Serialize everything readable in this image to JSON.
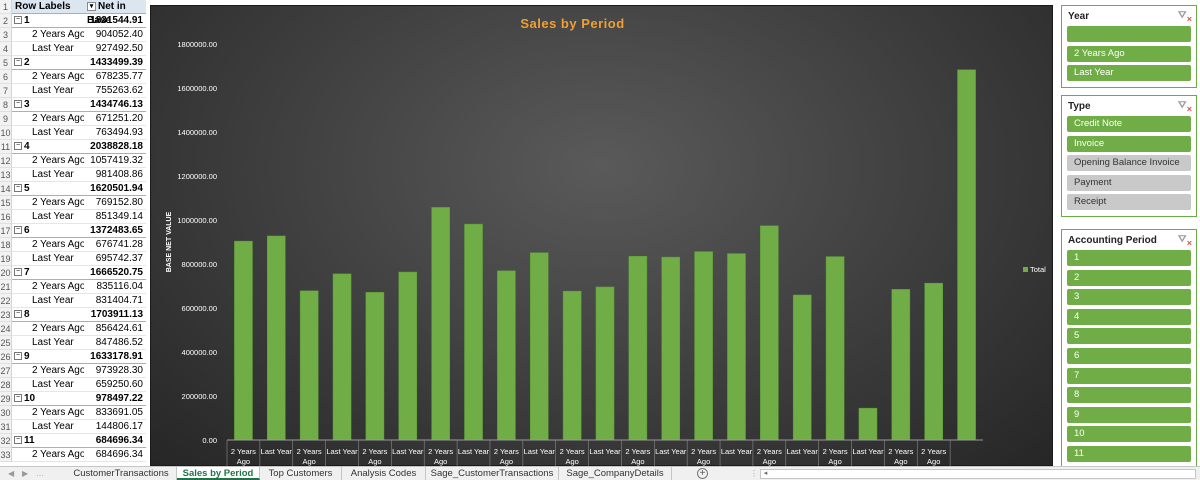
{
  "pivot": {
    "headers": {
      "row_labels": "Row Labels",
      "value_col": "Net in Base"
    },
    "rows": [
      {
        "n": "2",
        "label": "1",
        "value": "1831544.91",
        "kind": "group"
      },
      {
        "n": "3",
        "label": "2 Years Ago",
        "value": "904052.40",
        "kind": "child"
      },
      {
        "n": "4",
        "label": "Last Year",
        "value": "927492.50",
        "kind": "child"
      },
      {
        "n": "5",
        "label": "2",
        "value": "1433499.39",
        "kind": "group"
      },
      {
        "n": "6",
        "label": "2 Years Ago",
        "value": "678235.77",
        "kind": "child"
      },
      {
        "n": "7",
        "label": "Last Year",
        "value": "755263.62",
        "kind": "child"
      },
      {
        "n": "8",
        "label": "3",
        "value": "1434746.13",
        "kind": "group"
      },
      {
        "n": "9",
        "label": "2 Years Ago",
        "value": "671251.20",
        "kind": "child"
      },
      {
        "n": "10",
        "label": "Last Year",
        "value": "763494.93",
        "kind": "child"
      },
      {
        "n": "11",
        "label": "4",
        "value": "2038828.18",
        "kind": "group"
      },
      {
        "n": "12",
        "label": "2 Years Ago",
        "value": "1057419.32",
        "kind": "child"
      },
      {
        "n": "13",
        "label": "Last Year",
        "value": "981408.86",
        "kind": "child"
      },
      {
        "n": "14",
        "label": "5",
        "value": "1620501.94",
        "kind": "group"
      },
      {
        "n": "15",
        "label": "2 Years Ago",
        "value": "769152.80",
        "kind": "child"
      },
      {
        "n": "16",
        "label": "Last Year",
        "value": "851349.14",
        "kind": "child"
      },
      {
        "n": "17",
        "label": "6",
        "value": "1372483.65",
        "kind": "group"
      },
      {
        "n": "18",
        "label": "2 Years Ago",
        "value": "676741.28",
        "kind": "child"
      },
      {
        "n": "19",
        "label": "Last Year",
        "value": "695742.37",
        "kind": "child"
      },
      {
        "n": "20",
        "label": "7",
        "value": "1666520.75",
        "kind": "group"
      },
      {
        "n": "21",
        "label": "2 Years Ago",
        "value": "835116.04",
        "kind": "child"
      },
      {
        "n": "22",
        "label": "Last Year",
        "value": "831404.71",
        "kind": "child"
      },
      {
        "n": "23",
        "label": "8",
        "value": "1703911.13",
        "kind": "group"
      },
      {
        "n": "24",
        "label": "2 Years Ago",
        "value": "856424.61",
        "kind": "child"
      },
      {
        "n": "25",
        "label": "Last Year",
        "value": "847486.52",
        "kind": "child"
      },
      {
        "n": "26",
        "label": "9",
        "value": "1633178.91",
        "kind": "group"
      },
      {
        "n": "27",
        "label": "2 Years Ago",
        "value": "973928.30",
        "kind": "child"
      },
      {
        "n": "28",
        "label": "Last Year",
        "value": "659250.60",
        "kind": "child"
      },
      {
        "n": "29",
        "label": "10",
        "value": "978497.22",
        "kind": "group"
      },
      {
        "n": "30",
        "label": "2 Years Ago",
        "value": "833691.05",
        "kind": "child"
      },
      {
        "n": "31",
        "label": "Last Year",
        "value": "144806.17",
        "kind": "child"
      },
      {
        "n": "32",
        "label": "11",
        "value": "684696.34",
        "kind": "group"
      },
      {
        "n": "33",
        "label": "2 Years Ago",
        "value": "684696.34",
        "kind": "child"
      }
    ]
  },
  "chart_data": {
    "type": "bar",
    "title": "Sales by Period",
    "ylabel": "BASE NET VALUE",
    "xlabel": "",
    "ylim": [
      0,
      1800000
    ],
    "yticks": [
      "0.00",
      "200000.00",
      "400000.00",
      "600000.00",
      "800000.00",
      "1000000.00",
      "1200000.00",
      "1400000.00",
      "1600000.00",
      "1800000.00"
    ],
    "legend_position": "right",
    "grid": false,
    "series": [
      {
        "name": "Total",
        "color": "#70ad47"
      }
    ],
    "categories": [
      "2 Years Ago",
      "Last Year",
      "2 Years Ago",
      "Last Year",
      "2 Years Ago",
      "Last Year",
      "2 Years Ago",
      "Last Year",
      "2 Years Ago",
      "Last Year",
      "2 Years Ago",
      "Last Year",
      "2 Years Ago",
      "Last Year",
      "2 Years Ago",
      "Last Year",
      "2 Years Ago",
      "Last Year",
      "2 Years Ago",
      "Last Year",
      "2 Years Ago",
      "2 Years Ago",
      ""
    ],
    "values": [
      904052.4,
      927492.5,
      678235.77,
      755263.62,
      671251.2,
      763494.93,
      1057419.32,
      981408.86,
      769152.8,
      851349.14,
      676741.28,
      695742.37,
      835116.04,
      831404.71,
      856424.61,
      847486.52,
      973928.3,
      659250.6,
      833691.05,
      144806.17,
      684696.34,
      713000,
      1683000
    ]
  },
  "slicers": [
    {
      "title": "Year",
      "clear_icon": "filter-clear-icon",
      "items": [
        {
          "label": "",
          "selected": true
        },
        {
          "label": "2 Years Ago",
          "selected": true
        },
        {
          "label": "Last Year",
          "selected": true
        }
      ]
    },
    {
      "title": "Type",
      "clear_icon": "filter-clear-icon",
      "items": [
        {
          "label": "Credit Note",
          "selected": true
        },
        {
          "label": "Invoice",
          "selected": true
        },
        {
          "label": "Opening Balance Invoice",
          "selected": false
        },
        {
          "label": "Payment",
          "selected": false
        },
        {
          "label": "Receipt",
          "selected": false
        }
      ]
    },
    {
      "title": "Accounting Period",
      "clear_icon": "filter-clear-icon",
      "items": [
        {
          "label": "1",
          "selected": true
        },
        {
          "label": "2",
          "selected": true
        },
        {
          "label": "3",
          "selected": true
        },
        {
          "label": "4",
          "selected": true
        },
        {
          "label": "5",
          "selected": true
        },
        {
          "label": "6",
          "selected": true
        },
        {
          "label": "7",
          "selected": true
        },
        {
          "label": "8",
          "selected": true
        },
        {
          "label": "9",
          "selected": true
        },
        {
          "label": "10",
          "selected": true
        },
        {
          "label": "11",
          "selected": true
        }
      ]
    }
  ],
  "sheet_tabs": [
    {
      "label": "CustomerTransactions",
      "active": false
    },
    {
      "label": "Sales by Period",
      "active": true
    },
    {
      "label": "Top Customers",
      "active": false
    },
    {
      "label": "Analysis Codes",
      "active": false
    },
    {
      "label": "Sage_CustomerTransactions",
      "active": false
    },
    {
      "label": "Sage_CompanyDetails",
      "active": false
    }
  ],
  "colors": {
    "accent_green": "#70ad47",
    "title_orange": "#f0a030",
    "slicer_unselected": "#c9c9c9",
    "active_tab_green": "#217346"
  }
}
